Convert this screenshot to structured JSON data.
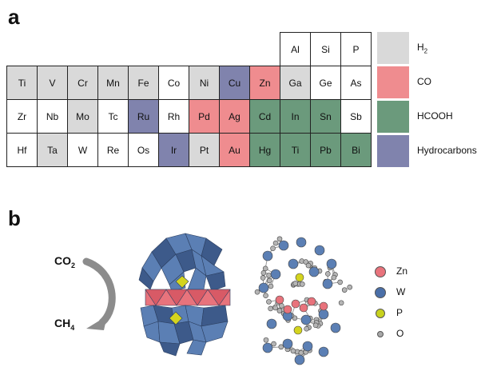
{
  "panel_a": {
    "label": "a",
    "elements": [
      {
        "symbol": "Al",
        "row": 0,
        "col": 9,
        "product": "white"
      },
      {
        "symbol": "Si",
        "row": 0,
        "col": 10,
        "product": "white"
      },
      {
        "symbol": "P",
        "row": 0,
        "col": 11,
        "product": "white"
      },
      {
        "symbol": "Ti",
        "row": 1,
        "col": 0,
        "product": "H2"
      },
      {
        "symbol": "V",
        "row": 1,
        "col": 1,
        "product": "H2"
      },
      {
        "symbol": "Cr",
        "row": 1,
        "col": 2,
        "product": "H2"
      },
      {
        "symbol": "Mn",
        "row": 1,
        "col": 3,
        "product": "H2"
      },
      {
        "symbol": "Fe",
        "row": 1,
        "col": 4,
        "product": "H2"
      },
      {
        "symbol": "Co",
        "row": 1,
        "col": 5,
        "product": "white"
      },
      {
        "symbol": "Ni",
        "row": 1,
        "col": 6,
        "product": "H2"
      },
      {
        "symbol": "Cu",
        "row": 1,
        "col": 7,
        "product": "Hydrocarbons"
      },
      {
        "symbol": "Zn",
        "row": 1,
        "col": 8,
        "product": "CO"
      },
      {
        "symbol": "Ga",
        "row": 1,
        "col": 9,
        "product": "H2"
      },
      {
        "symbol": "Ge",
        "row": 1,
        "col": 10,
        "product": "white"
      },
      {
        "symbol": "As",
        "row": 1,
        "col": 11,
        "product": "white"
      },
      {
        "symbol": "Zr",
        "row": 2,
        "col": 0,
        "product": "white"
      },
      {
        "symbol": "Nb",
        "row": 2,
        "col": 1,
        "product": "white"
      },
      {
        "symbol": "Mo",
        "row": 2,
        "col": 2,
        "product": "H2"
      },
      {
        "symbol": "Tc",
        "row": 2,
        "col": 3,
        "product": "white"
      },
      {
        "symbol": "Ru",
        "row": 2,
        "col": 4,
        "product": "Hydrocarbons"
      },
      {
        "symbol": "Rh",
        "row": 2,
        "col": 5,
        "product": "white"
      },
      {
        "symbol": "Pd",
        "row": 2,
        "col": 6,
        "product": "CO"
      },
      {
        "symbol": "Ag",
        "row": 2,
        "col": 7,
        "product": "CO"
      },
      {
        "symbol": "Cd",
        "row": 2,
        "col": 8,
        "product": "HCOOH"
      },
      {
        "symbol": "In",
        "row": 2,
        "col": 9,
        "product": "HCOOH"
      },
      {
        "symbol": "Sn",
        "row": 2,
        "col": 10,
        "product": "HCOOH"
      },
      {
        "symbol": "Sb",
        "row": 2,
        "col": 11,
        "product": "white"
      },
      {
        "symbol": "Hf",
        "row": 3,
        "col": 0,
        "product": "white"
      },
      {
        "symbol": "Ta",
        "row": 3,
        "col": 1,
        "product": "H2"
      },
      {
        "symbol": "W",
        "row": 3,
        "col": 2,
        "product": "white"
      },
      {
        "symbol": "Re",
        "row": 3,
        "col": 3,
        "product": "white"
      },
      {
        "symbol": "Os",
        "row": 3,
        "col": 4,
        "product": "white"
      },
      {
        "symbol": "Ir",
        "row": 3,
        "col": 5,
        "product": "Hydrocarbons"
      },
      {
        "symbol": "Pt",
        "row": 3,
        "col": 6,
        "product": "H2"
      },
      {
        "symbol": "Au",
        "row": 3,
        "col": 7,
        "product": "CO"
      },
      {
        "symbol": "Hg",
        "row": 3,
        "col": 8,
        "product": "HCOOH"
      },
      {
        "symbol": "Ti",
        "row": 3,
        "col": 9,
        "product": "HCOOH"
      },
      {
        "symbol": "Pb",
        "row": 3,
        "col": 10,
        "product": "HCOOH"
      },
      {
        "symbol": "Bi",
        "row": 3,
        "col": 11,
        "product": "HCOOH"
      }
    ],
    "colors": {
      "white": "#ffffff",
      "H2": "#d9d9d9",
      "CO": "#ef8c8f",
      "HCOOH": "#6b9a7c",
      "Hydrocarbons": "#8083ad"
    },
    "legend": [
      {
        "key": "H2",
        "main": "H",
        "sub": "2"
      },
      {
        "key": "CO",
        "main": "CO",
        "sub": ""
      },
      {
        "key": "HCOOH",
        "main": "HCOOH",
        "sub": ""
      },
      {
        "key": "Hydrocarbons",
        "main": "Hydrocarbons",
        "sub": ""
      }
    ]
  },
  "panel_b": {
    "label": "b",
    "reactant": {
      "main": "CO",
      "sub": "2"
    },
    "product": {
      "main": "CH",
      "sub": "4"
    },
    "atom_legend": [
      {
        "label": "Zn",
        "color": "#e8737c"
      },
      {
        "label": "W",
        "color": "#4a6fa8"
      },
      {
        "label": "P",
        "color": "#c8d21e"
      },
      {
        "label": "O",
        "color": "#a8a8a8"
      }
    ],
    "colors": {
      "polyhedra_blue": "#5b7fb4",
      "polyhedra_blue_dark": "#3d5a8a",
      "zn_red": "#e8737c",
      "p_yellow": "#d4d41e",
      "arrow_gray": "#8c8c8c"
    }
  }
}
